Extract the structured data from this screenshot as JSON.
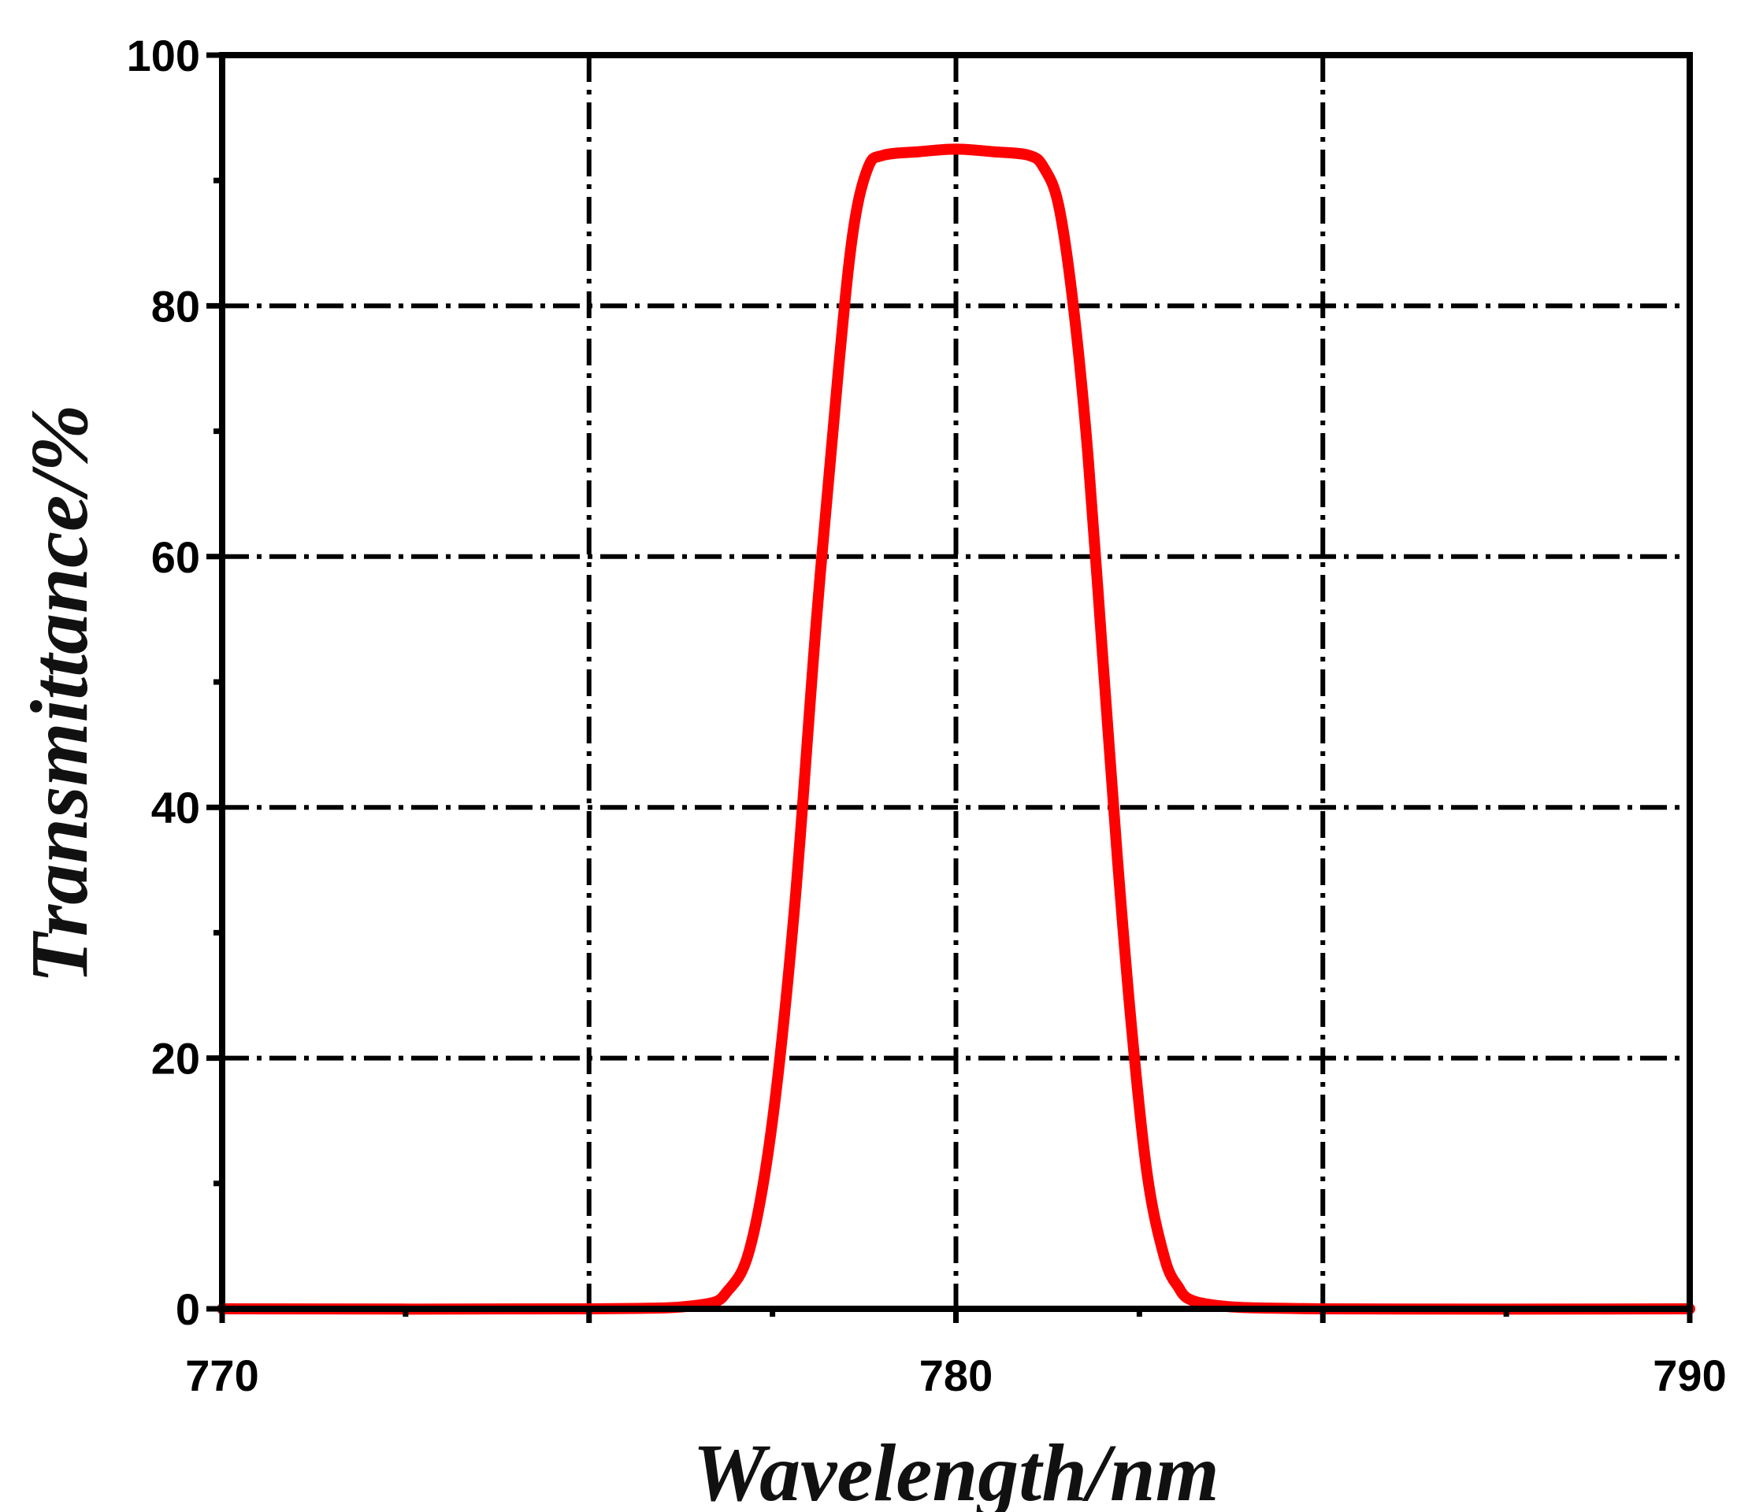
{
  "chart_data": {
    "type": "line",
    "xlabel": "Wavelength/nm",
    "ylabel": "Transmittance/%",
    "xlim": [
      770,
      790
    ],
    "ylim": [
      0,
      100
    ],
    "x_ticks": [
      770,
      775,
      780,
      785,
      790
    ],
    "x_tick_labels": [
      "770",
      "",
      "780",
      "",
      "790"
    ],
    "y_ticks": [
      0,
      20,
      40,
      60,
      80,
      100
    ],
    "y_tick_labels": [
      "0",
      "20",
      "40",
      "60",
      "80",
      "100"
    ],
    "grid": true,
    "series": [
      {
        "color": "#ff0000",
        "x": [
          770,
          775,
          776.5,
          776.9,
          777.2,
          777.5,
          777.8,
          778.1,
          778.4,
          778.6,
          778.8,
          779.0,
          779.5,
          780.0,
          780.5,
          781.0,
          781.2,
          781.4,
          781.6,
          781.8,
          782.0,
          782.2,
          782.4,
          782.6,
          782.8,
          783.0,
          783.4,
          785,
          790
        ],
        "y": [
          0,
          0,
          0.3,
          1.5,
          5,
          15,
          32,
          55,
          75,
          86,
          91,
          92,
          92.3,
          92.5,
          92.3,
          92,
          91,
          88,
          80,
          68,
          52,
          36,
          22,
          11,
          5,
          2,
          0.4,
          0,
          0
        ]
      }
    ]
  }
}
